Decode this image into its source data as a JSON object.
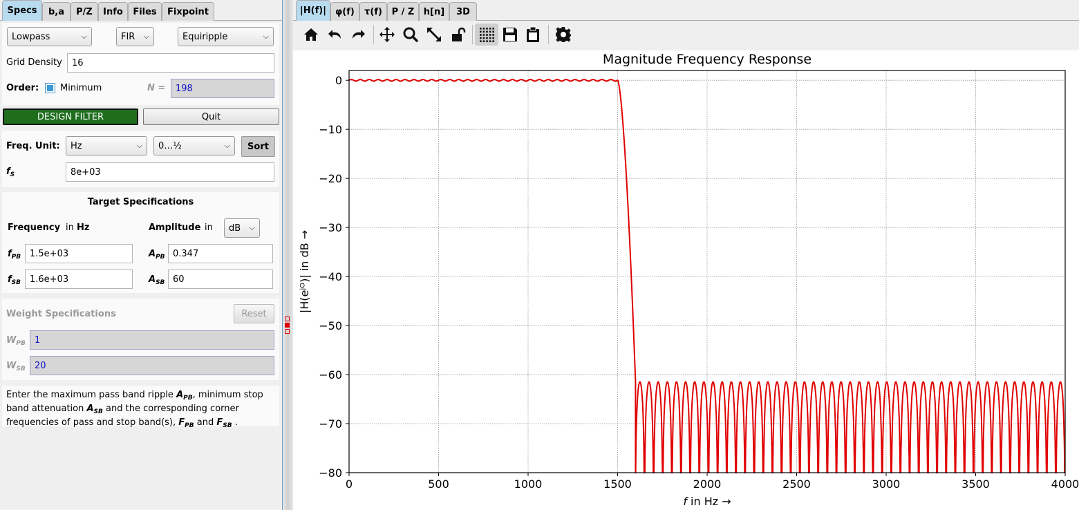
{
  "left_tabs": [
    "Specs",
    "b,a",
    "P/Z",
    "Info",
    "Files",
    "Fixpoint"
  ],
  "filter": {
    "response_type": "Lowpass",
    "filter_type": "FIR",
    "design_method": "Equiripple",
    "grid_density_label": "Grid Density",
    "grid_density_value": "16",
    "order_label": "Order:",
    "minimum_label": "Minimum",
    "minimum_checked": true,
    "n_label": "N =",
    "n_value": "198"
  },
  "buttons": {
    "design": "DESIGN FILTER",
    "quit": "Quit",
    "sort": "Sort",
    "reset": "Reset"
  },
  "freq": {
    "unit_label": "Freq. Unit:",
    "unit": "Hz",
    "range": "0…½",
    "fs_label": "f",
    "fs_sub": "S",
    "fs_value": "8e+03"
  },
  "target": {
    "title": "Target Specifications",
    "frequency_label": "Frequency",
    "in_label": "in",
    "freq_unit": "Hz",
    "amplitude_label": "Amplitude",
    "amp_in_label": "in",
    "amp_unit": "dB",
    "fpb_label": "f",
    "fpb_sub": "PB",
    "fpb_value": "1.5e+03",
    "fsb_label": "f",
    "fsb_sub": "SB",
    "fsb_value": "1.6e+03",
    "apb_label": "A",
    "apb_sub": "PB",
    "apb_value": "0.347",
    "asb_label": "A",
    "asb_sub": "SB",
    "asb_value": "60"
  },
  "weight": {
    "title": "Weight Specifications",
    "wpb_label": "W",
    "wpb_sub": "PB",
    "wpb_value": "1",
    "wsb_label": "W",
    "wsb_sub": "SB",
    "wsb_value": "20"
  },
  "info_text": {
    "p1": "Enter the maximum pass band ripple ",
    "apb": "A",
    "apb_sub": "PB",
    "p2": ", minimum stop band attenuation ",
    "asb": "A",
    "asb_sub": "SB",
    "p3": " and the corresponding corner frequencies of pass and stop band(s), ",
    "fpb": "F",
    "fpb_sub": "PB",
    "p4": "  and ",
    "fsb": "F",
    "fsb_sub": "SB",
    "p5": " ."
  },
  "plot_tabs": [
    "|H(f)|",
    "φ(f)",
    "τ(f)",
    "P / Z",
    "h[n]",
    "3D"
  ],
  "toolbar_icons": [
    "home-icon",
    "undo-icon",
    "redo-icon",
    "pan-icon",
    "zoom-icon",
    "autoscale-icon",
    "lock-icon",
    "grid-icon",
    "save-icon",
    "clipboard-icon",
    "settings-icon"
  ],
  "colors": {
    "accent_tab": "#b8dbf0",
    "design_button": "#1e6e1e",
    "response": "#e00000"
  },
  "chart_data": {
    "type": "line",
    "title": "Magnitude Frequency Response",
    "xlabel_var": "f",
    "xlabel": " in Hz →",
    "ylabel": "|H(eʲᴼ)| in dB →",
    "xlim": [
      0,
      4000
    ],
    "ylim": [
      -80,
      2
    ],
    "xticks": [
      0,
      500,
      1000,
      1500,
      2000,
      2500,
      3000,
      3500,
      4000
    ],
    "yticks": [
      0,
      -10,
      -20,
      -30,
      -40,
      -50,
      -60,
      -70,
      -80
    ],
    "grid": true,
    "series": [
      {
        "passband_edge": 1500,
        "stopband_edge": 1600,
        "passband_ripple_db": 0.347,
        "stopband_peak_db": -61.5,
        "passband_lobes": 30,
        "stopband_lobes": 47,
        "color": "#e00000"
      }
    ]
  }
}
